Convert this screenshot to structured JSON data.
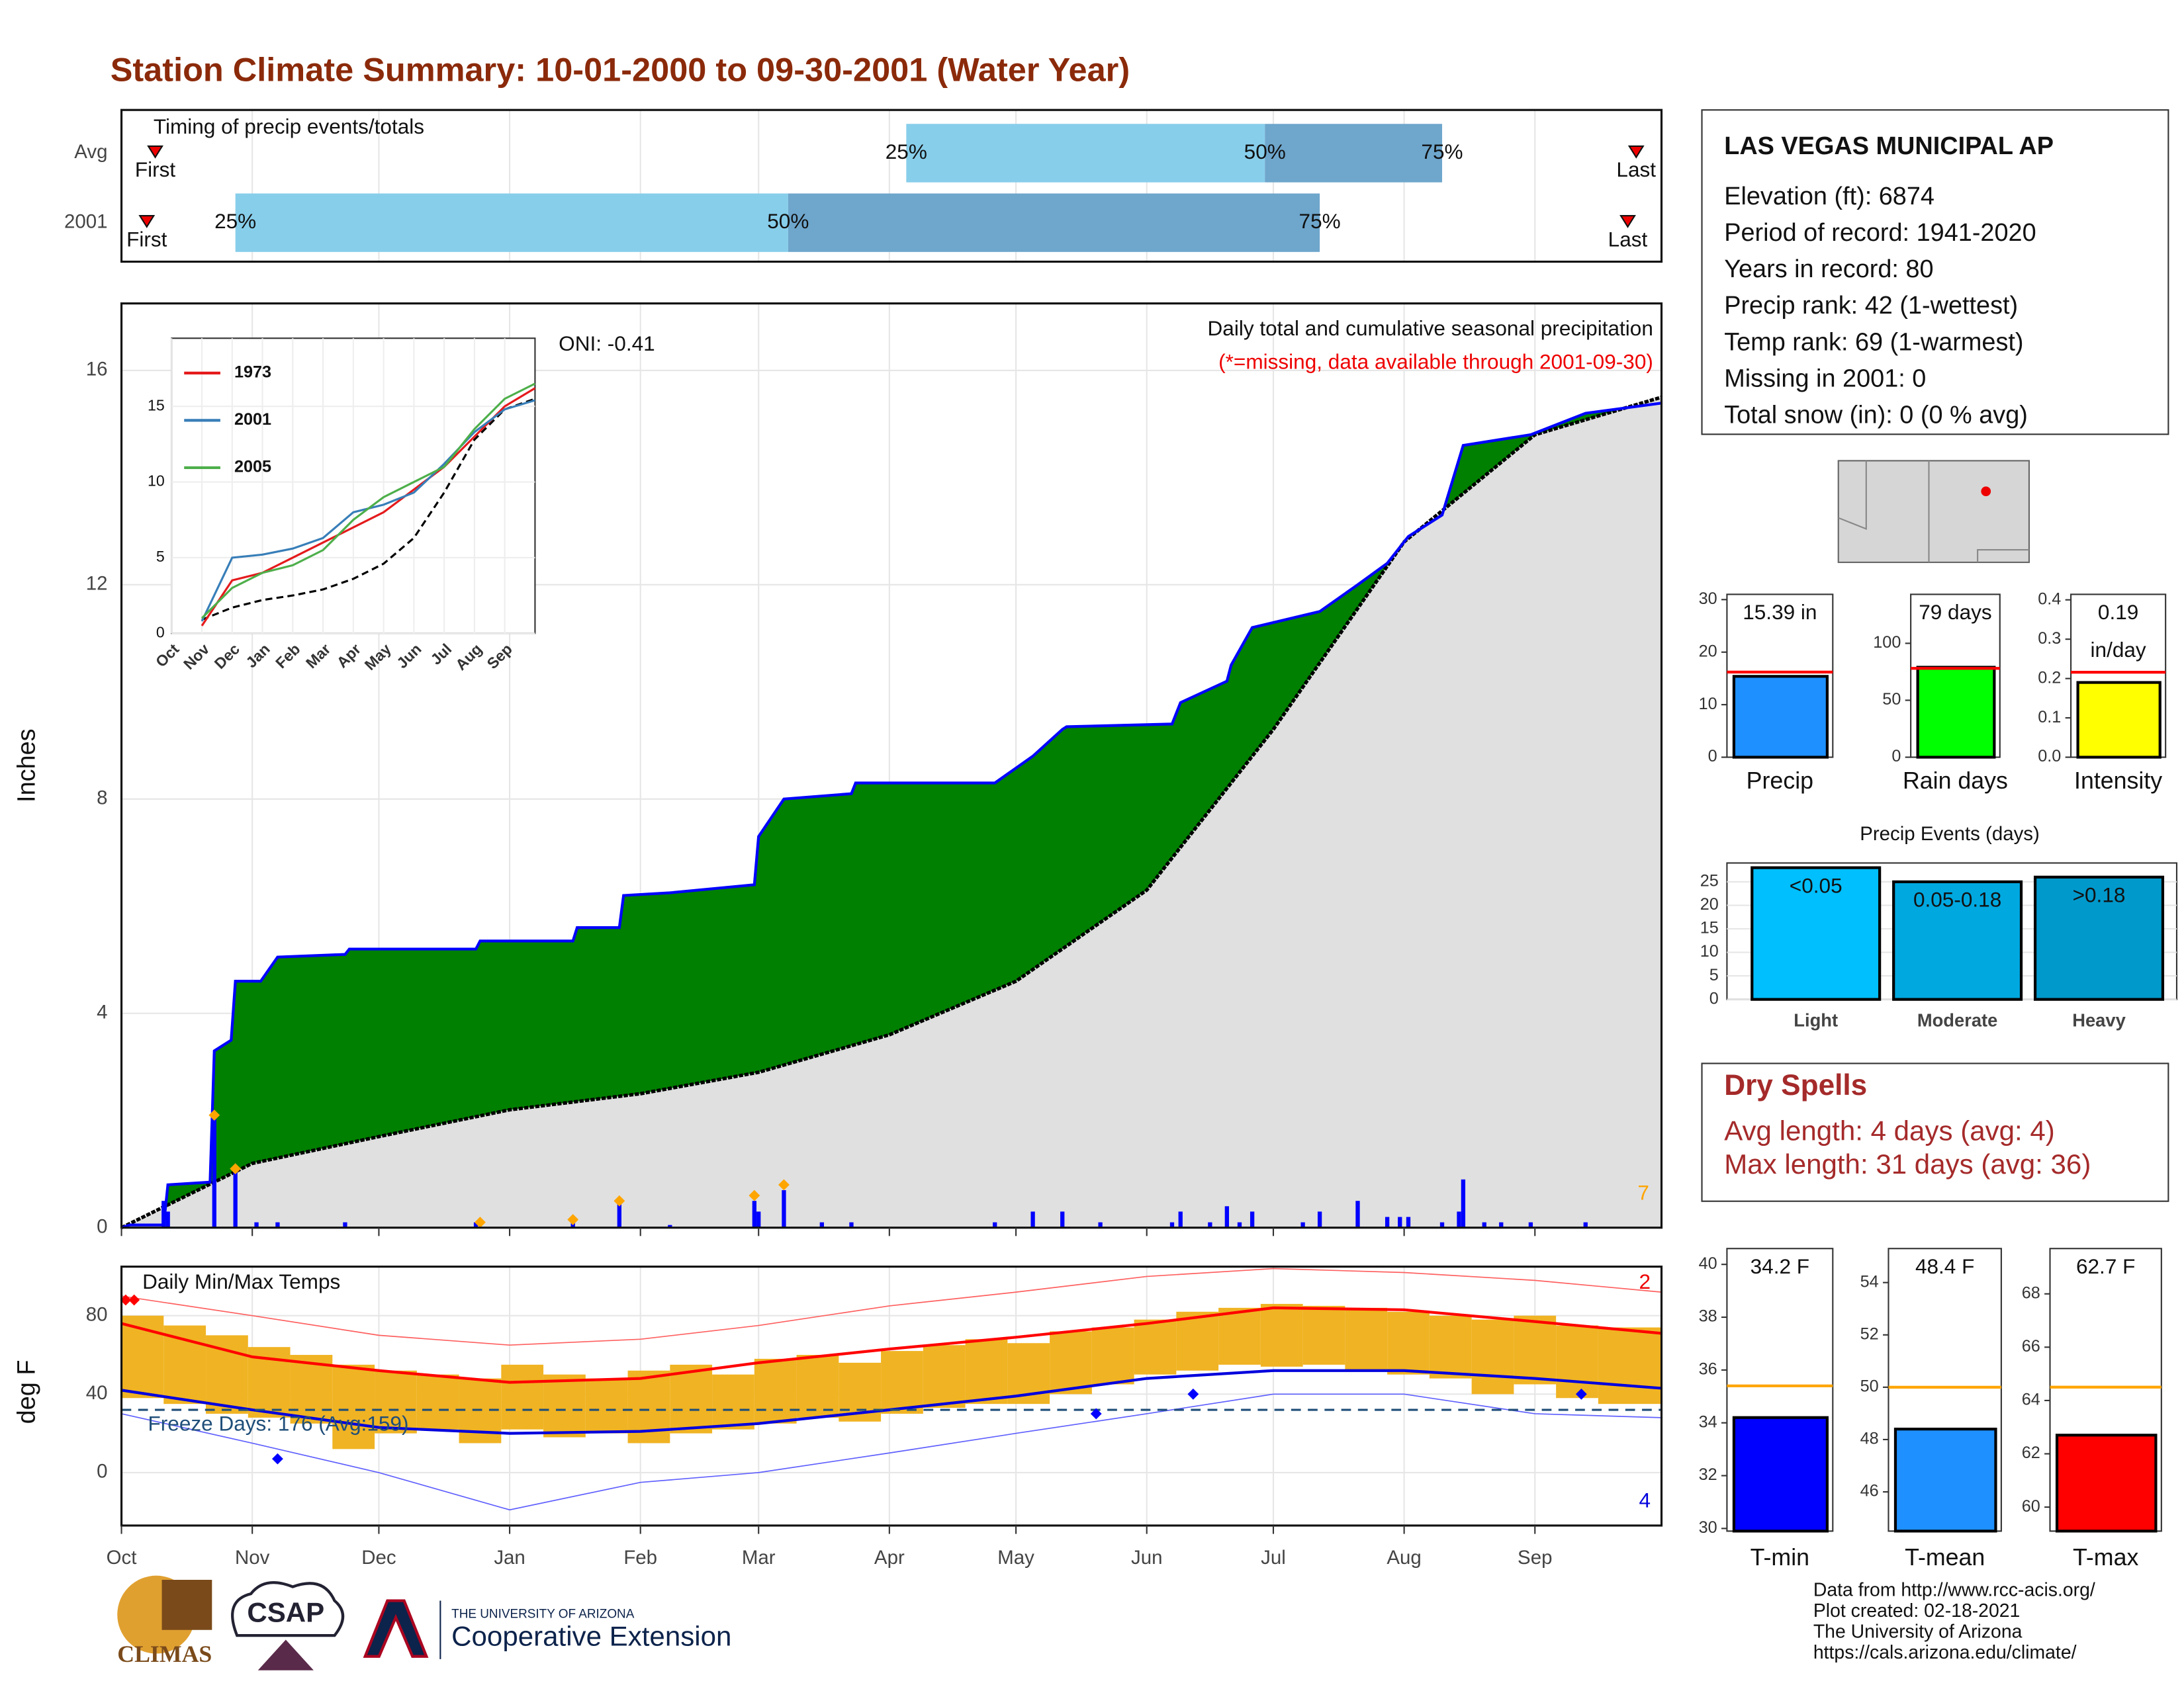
{
  "chart_data": {
    "type": "dashboard",
    "title": "Station Climate Summary: 10-01-2000 to 09-30-2001 (Water Year)",
    "months": {
      "labels": [
        "Oct",
        "Nov",
        "Dec",
        "Jan",
        "Feb",
        "Mar",
        "Apr",
        "May",
        "Jun",
        "Jul",
        "Aug",
        "Sep"
      ],
      "days": [
        0,
        31,
        61,
        92,
        123,
        151,
        182,
        212,
        243,
        273,
        304,
        335
      ],
      "xlim": [
        0,
        365
      ]
    },
    "timing": {
      "type": "range",
      "title": "Timing of precip events/totals",
      "first_label": "First",
      "last_label": "Last",
      "q_labels": [
        "25%",
        "50%",
        "75%"
      ],
      "rows": [
        {
          "name": "Avg",
          "first": 8,
          "q25": 186,
          "q50": 271,
          "q75": 313,
          "last": 359
        },
        {
          "name": "2001",
          "first": 6,
          "q25": 27,
          "q50": 158,
          "q75": 284,
          "last": 357
        }
      ]
    },
    "precip": {
      "type": "area",
      "ylabel": "Inches",
      "note": "Daily total and cumulative seasonal precipitation",
      "missing_note": "(*=missing, data available through 2001-09-30)",
      "oni": "ONI: -0.41",
      "record_count": 7,
      "ylim": [
        0,
        17.25
      ],
      "yticks": [
        0,
        4,
        8,
        12,
        16
      ],
      "cumulative": {
        "x": [
          0,
          2,
          10,
          11,
          21,
          22,
          26,
          27,
          33,
          37,
          53,
          54,
          84,
          85,
          107,
          108,
          118,
          119,
          130,
          150,
          151,
          157,
          173,
          174,
          207,
          216,
          223,
          224,
          249,
          251,
          262,
          263,
          268,
          284,
          293,
          300,
          305,
          313,
          318,
          334,
          347,
          365
        ],
        "values": [
          0,
          0.05,
          0.05,
          0.8,
          0.85,
          3.3,
          3.5,
          4.6,
          4.6,
          5.05,
          5.1,
          5.2,
          5.2,
          5.35,
          5.35,
          5.6,
          5.6,
          6.2,
          6.25,
          6.4,
          7.3,
          8.0,
          8.1,
          8.3,
          8.3,
          8.8,
          9.3,
          9.35,
          9.4,
          9.8,
          10.2,
          10.5,
          11.2,
          11.5,
          12,
          12.4,
          12.9,
          13.3,
          14.6,
          14.8,
          15.2,
          15.39
        ]
      },
      "average": {
        "x": [
          0,
          31,
          61,
          92,
          123,
          151,
          182,
          212,
          243,
          273,
          304,
          335,
          365
        ],
        "values": [
          0,
          1.2,
          1.7,
          2.2,
          2.5,
          2.9,
          3.6,
          4.6,
          6.3,
          9.3,
          12.8,
          14.8,
          15.5
        ]
      },
      "daily": {
        "x": [
          10,
          11,
          22,
          27,
          32,
          37,
          53,
          84,
          107,
          118,
          130,
          150,
          151,
          157,
          166,
          173,
          207,
          216,
          223,
          232,
          249,
          251,
          258,
          262,
          265,
          268,
          280,
          284,
          293,
          300,
          303,
          305,
          313,
          317,
          318,
          323,
          327,
          334,
          347
        ],
        "values": [
          0.5,
          0.3,
          2.1,
          1.1,
          0.1,
          0.1,
          0.1,
          0.1,
          0.1,
          0.5,
          0.05,
          0.5,
          0.3,
          0.7,
          0.1,
          0.1,
          0.1,
          0.3,
          0.3,
          0.1,
          0.1,
          0.3,
          0.1,
          0.4,
          0.1,
          0.3,
          0.1,
          0.3,
          0.5,
          0.2,
          0.2,
          0.2,
          0.1,
          0.3,
          0.9,
          0.1,
          0.1,
          0.1,
          0.1
        ]
      },
      "records": {
        "x": [
          22,
          27,
          85,
          107,
          118,
          150,
          157
        ],
        "values": [
          2.1,
          1.1,
          0.1,
          0.15,
          0.5,
          0.6,
          0.8
        ]
      }
    },
    "inset": {
      "type": "line",
      "categories": [
        "Oct",
        "Nov",
        "Dec",
        "Jan",
        "Feb",
        "Mar",
        "Apr",
        "May",
        "Jun",
        "Jul",
        "Aug",
        "Sep"
      ],
      "ylim": [
        0,
        19.5
      ],
      "yticks": [
        0,
        5,
        10,
        15
      ],
      "series": [
        {
          "name": "1973",
          "color": "#e41a1c",
          "values": [
            0.5,
            3.5,
            4,
            5,
            6,
            7,
            8,
            9.5,
            11,
            13,
            15,
            16.2
          ]
        },
        {
          "name": "2001",
          "color": "#377eb8",
          "values": [
            0.8,
            5.0,
            5.2,
            5.6,
            6.3,
            8.0,
            8.5,
            9.3,
            11.2,
            13.3,
            14.8,
            15.4
          ]
        },
        {
          "name": "2005",
          "color": "#4daf4a",
          "values": [
            1,
            3,
            4,
            4.5,
            5.5,
            7.5,
            9,
            10,
            11,
            13.5,
            15.5,
            16.5
          ]
        }
      ],
      "average": [
        0.9,
        1.7,
        2.2,
        2.5,
        2.9,
        3.6,
        4.6,
        6.3,
        9.3,
        12.8,
        14.8,
        15.5
      ]
    },
    "temp": {
      "type": "range-bar",
      "title": "Daily Min/Max Temps",
      "ylabel": "deg F",
      "ylim": [
        -27,
        105
      ],
      "yticks": [
        0,
        40,
        80
      ],
      "freeze": 32,
      "freeze_label": "Freeze Days: 176 (Avg:159)",
      "record_high_count": 2,
      "record_low_count": 4,
      "normal_x": [
        0,
        31,
        61,
        92,
        123,
        151,
        182,
        212,
        243,
        273,
        304,
        335,
        365
      ],
      "normal_max": [
        76,
        59,
        52,
        46,
        48,
        56,
        63,
        69,
        76,
        84,
        83,
        77,
        71
      ],
      "normal_min": [
        42,
        32,
        23,
        20,
        21,
        25,
        32,
        39,
        48,
        52,
        52,
        48,
        43
      ],
      "record_max": [
        90,
        80,
        70,
        65,
        68,
        75,
        85,
        92,
        100,
        104,
        102,
        98,
        92
      ],
      "record_min": [
        30,
        15,
        0,
        -19,
        -5,
        0,
        10,
        20,
        30,
        40,
        40,
        30,
        28
      ],
      "daily_x": [
        0,
        10,
        20,
        30,
        40,
        50,
        60,
        70,
        80,
        90,
        100,
        110,
        120,
        130,
        140,
        150,
        160,
        170,
        180,
        190,
        200,
        210,
        220,
        230,
        240,
        250,
        260,
        270,
        280,
        290,
        300,
        310,
        320,
        330,
        340,
        350
      ],
      "daily_max": [
        80,
        75,
        70,
        64,
        60,
        55,
        52,
        50,
        48,
        55,
        50,
        48,
        52,
        55,
        50,
        58,
        60,
        56,
        62,
        65,
        68,
        66,
        72,
        74,
        78,
        82,
        84,
        86,
        85,
        84,
        82,
        80,
        78,
        80,
        75,
        74
      ],
      "daily_min": [
        38,
        35,
        30,
        28,
        25,
        12,
        20,
        22,
        15,
        22,
        18,
        20,
        15,
        20,
        22,
        25,
        28,
        26,
        30,
        33,
        35,
        35,
        40,
        45,
        50,
        52,
        55,
        54,
        55,
        52,
        50,
        48,
        40,
        45,
        38,
        35
      ],
      "high_marks": {
        "x": [
          1,
          3
        ],
        "values": [
          88,
          88
        ]
      },
      "low_marks": {
        "x": [
          37,
          231,
          254,
          346
        ],
        "values": [
          7,
          30,
          40,
          40
        ]
      }
    },
    "station": {
      "name": "LAS VEGAS MUNICIPAL AP",
      "lines": [
        "Elevation (ft): 6874",
        "Period of record: 1941-2020",
        "Years in record: 80",
        "Precip rank: 42 (1-wettest)",
        "Temp rank: 69 (1-warmest)",
        "Missing in 2001: 0",
        "Total snow (in): 0 (0 % avg)"
      ]
    },
    "mini": [
      {
        "type": "bar",
        "name": "Precip",
        "value": 15.39,
        "value_label": "15.39 in",
        "avg": 16.2,
        "ylim": [
          0,
          31
        ],
        "yticks": [
          0,
          10,
          20,
          30
        ],
        "color": "#1e90ff",
        "avg_color": "#ff0000"
      },
      {
        "type": "bar",
        "name": "Rain days",
        "value": 79,
        "value_label": "79 days",
        "avg": 78,
        "ylim": [
          0,
          143
        ],
        "yticks": [
          0,
          50,
          100
        ],
        "color": "#00ff00",
        "avg_color": "#ff0000"
      },
      {
        "type": "bar",
        "name": "Intensity",
        "value": 0.19,
        "value_label": "0.19",
        "unit": "in/day",
        "avg": 0.216,
        "ylim": [
          0,
          0.414
        ],
        "yticks": [
          {
            "value": 0,
            "label": "0.0"
          },
          0.1,
          0.2,
          0.3,
          0.4
        ],
        "color": "#ffff00",
        "avg_color": "#ff0000"
      }
    ],
    "events": {
      "type": "bar",
      "title": "Precip Events (days)",
      "categories": [
        "Light",
        "Moderate",
        "Heavy"
      ],
      "values": [
        28,
        25,
        26
      ],
      "value_labels": [
        "<0.05",
        "0.05-0.18",
        ">0.18"
      ],
      "colors": [
        "#00bfff",
        "#00a8e0",
        "#0099cc"
      ],
      "ylim": [
        0,
        29
      ],
      "yticks": [
        0,
        5,
        10,
        15,
        20,
        25
      ]
    },
    "dry": {
      "title": "Dry Spells",
      "lines": [
        "Avg length: 4 days (avg: 4)",
        "Max length: 31 days (avg: 36)"
      ]
    },
    "temp_mini": [
      {
        "type": "bar",
        "name": "T-min",
        "value": 34.2,
        "value_label": "34.2 F",
        "avg": 35.4,
        "ylim": [
          29.9,
          40.6
        ],
        "yticks": [
          30,
          32,
          34,
          36,
          38,
          40
        ],
        "color": "#0000ff",
        "avg_color": "#ffa500"
      },
      {
        "type": "bar",
        "name": "T-mean",
        "value": 48.4,
        "value_label": "48.4 F",
        "avg": 50,
        "ylim": [
          44.5,
          55.3
        ],
        "yticks": [
          46,
          48,
          50,
          52,
          54
        ],
        "color": "#1e90ff",
        "avg_color": "#ffa500"
      },
      {
        "type": "bar",
        "name": "T-max",
        "value": 62.7,
        "value_label": "62.7 F",
        "avg": 64.5,
        "ylim": [
          59.1,
          69.7
        ],
        "yticks": [
          60,
          62,
          64,
          66,
          68
        ],
        "color": "#ff0000",
        "avg_color": "#ffa500"
      }
    ],
    "footer": [
      "Data from http://www.rcc-acis.org/",
      "Plot created: 02-18-2021",
      "The University of Arizona",
      "https://cals.arizona.edu/climate/"
    ],
    "logos": {
      "climas": "CLIMAS",
      "csap": "CSAP",
      "ua": "THE UNIVERSITY OF ARIZONA",
      "coop": "Cooperative Extension"
    }
  }
}
